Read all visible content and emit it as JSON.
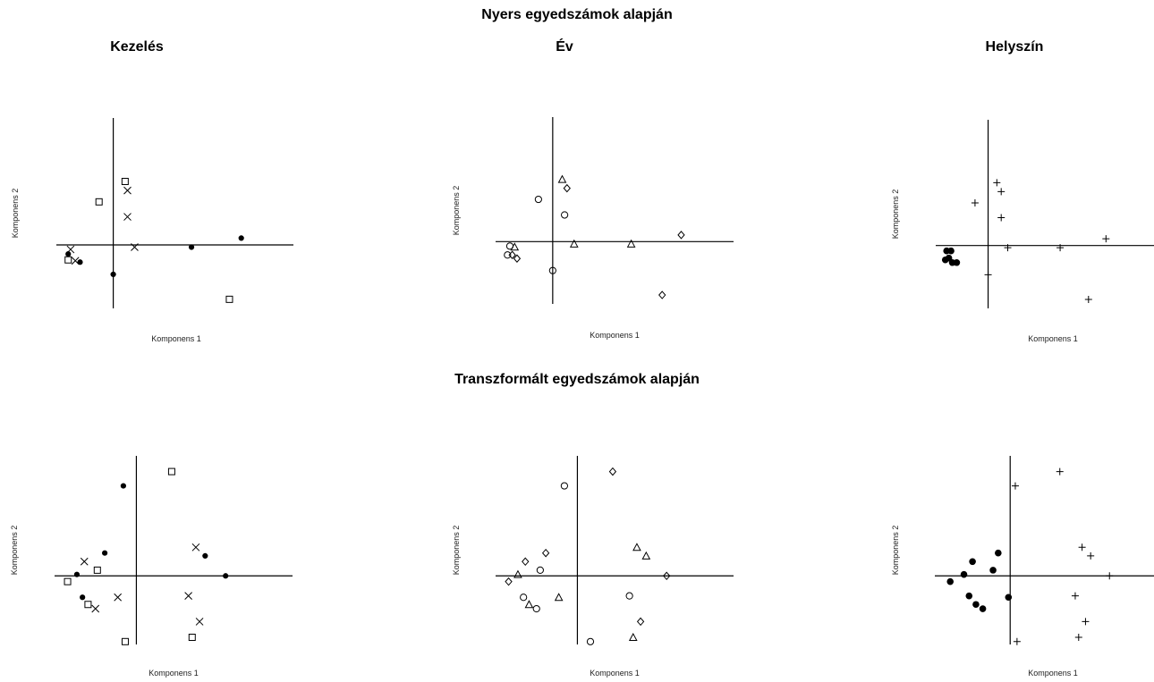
{
  "headings": {
    "raw": "Nyers egyedszámok alapján",
    "transformed": "Transzformált egyedszámok alapján",
    "col1": "Kezelés",
    "col2": "Év",
    "col3": "Helyszín"
  },
  "chart_data": [
    {
      "type": "scatter",
      "title": "Kezelés",
      "group": "Nyers egyedszámok alapján",
      "xlabel": "Komponens 1",
      "ylabel": "Komponens 2",
      "xlim": [
        -1.2,
        3.8
      ],
      "ylim": [
        -1.4,
        2.8
      ],
      "points": [
        {
          "x": 0.25,
          "y": 1.4,
          "m": "square"
        },
        {
          "x": -0.3,
          "y": 0.95,
          "m": "square"
        },
        {
          "x": 2.45,
          "y": -1.2,
          "m": "square"
        },
        {
          "x": -0.95,
          "y": -0.33,
          "m": "square"
        },
        {
          "x": 0.3,
          "y": 1.2,
          "m": "x"
        },
        {
          "x": 0.3,
          "y": 0.62,
          "m": "x"
        },
        {
          "x": 0.45,
          "y": -0.05,
          "m": "x"
        },
        {
          "x": -0.9,
          "y": -0.1,
          "m": "x"
        },
        {
          "x": -0.8,
          "y": -0.35,
          "m": "x"
        },
        {
          "x": 2.7,
          "y": 0.15,
          "m": "star"
        },
        {
          "x": 1.65,
          "y": -0.05,
          "m": "star"
        },
        {
          "x": 0.0,
          "y": -0.65,
          "m": "star"
        },
        {
          "x": -0.7,
          "y": -0.38,
          "m": "star"
        },
        {
          "x": -0.95,
          "y": -0.2,
          "m": "star"
        }
      ]
    },
    {
      "type": "scatter",
      "title": "Év",
      "group": "Nyers egyedszámok alapján",
      "xlabel": "Komponens 1",
      "ylabel": "Komponens 2",
      "xlim": [
        -1.2,
        3.8
      ],
      "ylim": [
        -1.4,
        2.8
      ],
      "points": [
        {
          "x": -0.3,
          "y": 0.95,
          "m": "circle"
        },
        {
          "x": 0.25,
          "y": 0.6,
          "m": "circle"
        },
        {
          "x": 0.0,
          "y": -0.65,
          "m": "circle"
        },
        {
          "x": -0.9,
          "y": -0.1,
          "m": "circle"
        },
        {
          "x": -0.95,
          "y": -0.3,
          "m": "circle"
        },
        {
          "x": 0.2,
          "y": 1.4,
          "m": "triangle"
        },
        {
          "x": 0.45,
          "y": -0.05,
          "m": "triangle"
        },
        {
          "x": 1.65,
          "y": -0.05,
          "m": "triangle"
        },
        {
          "x": -0.8,
          "y": -0.12,
          "m": "triangle"
        },
        {
          "x": 0.3,
          "y": 1.2,
          "m": "diamond"
        },
        {
          "x": 2.7,
          "y": 0.15,
          "m": "diamond"
        },
        {
          "x": 2.3,
          "y": -1.2,
          "m": "diamond"
        },
        {
          "x": -0.75,
          "y": -0.38,
          "m": "diamond"
        },
        {
          "x": -0.85,
          "y": -0.3,
          "m": "diamond"
        }
      ]
    },
    {
      "type": "scatter",
      "title": "Helyszín",
      "group": "Nyers egyedszámok alapján",
      "xlabel": "Komponens 1",
      "ylabel": "Komponens 2",
      "xlim": [
        -1.2,
        3.8
      ],
      "ylim": [
        -1.4,
        2.8
      ],
      "points": [
        {
          "x": 0.2,
          "y": 1.4,
          "m": "plus"
        },
        {
          "x": 0.3,
          "y": 1.2,
          "m": "plus"
        },
        {
          "x": -0.3,
          "y": 0.95,
          "m": "plus"
        },
        {
          "x": 0.3,
          "y": 0.62,
          "m": "plus"
        },
        {
          "x": 0.45,
          "y": -0.05,
          "m": "plus"
        },
        {
          "x": 1.65,
          "y": -0.05,
          "m": "plus"
        },
        {
          "x": 2.7,
          "y": 0.15,
          "m": "plus"
        },
        {
          "x": 0.0,
          "y": -0.65,
          "m": "plus"
        },
        {
          "x": 2.3,
          "y": -1.2,
          "m": "plus"
        },
        {
          "x": -0.95,
          "y": -0.12,
          "m": "dot"
        },
        {
          "x": -0.85,
          "y": -0.12,
          "m": "dot"
        },
        {
          "x": -0.98,
          "y": -0.32,
          "m": "dot"
        },
        {
          "x": -0.9,
          "y": -0.28,
          "m": "dot"
        },
        {
          "x": -0.82,
          "y": -0.38,
          "m": "dot"
        },
        {
          "x": -0.72,
          "y": -0.38,
          "m": "dot"
        }
      ]
    },
    {
      "type": "scatter",
      "title": "Kezelés",
      "group": "Transzformált egyedszámok alapján",
      "xlabel": "Komponens 1",
      "ylabel": "Komponens 2",
      "xlim": [
        -2.2,
        4.2
      ],
      "ylim": [
        -2.4,
        4.2
      ],
      "points": [
        {
          "x": 0.95,
          "y": 3.65,
          "m": "square"
        },
        {
          "x": -1.05,
          "y": 0.2,
          "m": "square"
        },
        {
          "x": -1.85,
          "y": -0.2,
          "m": "square"
        },
        {
          "x": -1.3,
          "y": -1.0,
          "m": "square"
        },
        {
          "x": -0.3,
          "y": -2.3,
          "m": "square"
        },
        {
          "x": 1.5,
          "y": -2.15,
          "m": "square"
        },
        {
          "x": -1.4,
          "y": 0.5,
          "m": "x"
        },
        {
          "x": 1.6,
          "y": 1.0,
          "m": "x"
        },
        {
          "x": 1.4,
          "y": -0.7,
          "m": "x"
        },
        {
          "x": -0.5,
          "y": -0.75,
          "m": "x"
        },
        {
          "x": -1.1,
          "y": -1.15,
          "m": "x"
        },
        {
          "x": 1.7,
          "y": -1.6,
          "m": "x"
        },
        {
          "x": -0.35,
          "y": 3.15,
          "m": "star"
        },
        {
          "x": -0.85,
          "y": 0.8,
          "m": "star"
        },
        {
          "x": 1.85,
          "y": 0.7,
          "m": "star"
        },
        {
          "x": -1.6,
          "y": 0.05,
          "m": "star"
        },
        {
          "x": 2.4,
          "y": 0.0,
          "m": "star"
        },
        {
          "x": -1.45,
          "y": -0.75,
          "m": "star"
        }
      ]
    },
    {
      "type": "scatter",
      "title": "Év",
      "group": "Transzformált egyedszámok alapján",
      "xlabel": "Komponens 1",
      "ylabel": "Komponens 2",
      "xlim": [
        -2.2,
        4.2
      ],
      "ylim": [
        -2.4,
        4.2
      ],
      "points": [
        {
          "x": -0.35,
          "y": 3.15,
          "m": "circle"
        },
        {
          "x": -1.0,
          "y": 0.2,
          "m": "circle"
        },
        {
          "x": -1.45,
          "y": -0.75,
          "m": "circle"
        },
        {
          "x": 1.4,
          "y": -0.7,
          "m": "circle"
        },
        {
          "x": -1.1,
          "y": -1.15,
          "m": "circle"
        },
        {
          "x": 0.35,
          "y": -2.3,
          "m": "circle"
        },
        {
          "x": -1.6,
          "y": 0.05,
          "m": "triangle"
        },
        {
          "x": 1.6,
          "y": 1.0,
          "m": "triangle"
        },
        {
          "x": 1.85,
          "y": 0.7,
          "m": "triangle"
        },
        {
          "x": -0.5,
          "y": -0.75,
          "m": "triangle"
        },
        {
          "x": -1.3,
          "y": -1.0,
          "m": "triangle"
        },
        {
          "x": 1.5,
          "y": -2.15,
          "m": "triangle"
        },
        {
          "x": 0.95,
          "y": 3.65,
          "m": "diamond"
        },
        {
          "x": -1.4,
          "y": 0.5,
          "m": "diamond"
        },
        {
          "x": -0.85,
          "y": 0.8,
          "m": "diamond"
        },
        {
          "x": 2.4,
          "y": 0.0,
          "m": "diamond"
        },
        {
          "x": -1.85,
          "y": -0.2,
          "m": "diamond"
        },
        {
          "x": 1.7,
          "y": -1.6,
          "m": "diamond"
        }
      ]
    },
    {
      "type": "scatter",
      "title": "Helyszín",
      "group": "Transzformált egyedszámok alapján",
      "xlabel": "Komponens 1",
      "ylabel": "Komponens 2",
      "xlim": [
        -2.2,
        4.2
      ],
      "ylim": [
        -2.4,
        4.2
      ],
      "points": [
        {
          "x": 1.45,
          "y": 3.65,
          "m": "plus"
        },
        {
          "x": 0.15,
          "y": 3.15,
          "m": "plus"
        },
        {
          "x": 2.1,
          "y": 1.0,
          "m": "plus"
        },
        {
          "x": 2.35,
          "y": 0.7,
          "m": "plus"
        },
        {
          "x": 2.9,
          "y": 0.0,
          "m": "plus"
        },
        {
          "x": 1.9,
          "y": -0.7,
          "m": "plus"
        },
        {
          "x": 2.2,
          "y": -1.6,
          "m": "plus"
        },
        {
          "x": 2.0,
          "y": -2.15,
          "m": "plus"
        },
        {
          "x": 0.2,
          "y": -2.3,
          "m": "plus"
        },
        {
          "x": -0.35,
          "y": 0.8,
          "m": "dot"
        },
        {
          "x": -1.1,
          "y": 0.5,
          "m": "dot"
        },
        {
          "x": -0.5,
          "y": 0.2,
          "m": "dot"
        },
        {
          "x": -1.35,
          "y": 0.05,
          "m": "dot"
        },
        {
          "x": -1.75,
          "y": -0.2,
          "m": "dot"
        },
        {
          "x": -1.2,
          "y": -0.7,
          "m": "dot"
        },
        {
          "x": -0.05,
          "y": -0.75,
          "m": "dot"
        },
        {
          "x": -1.0,
          "y": -1.0,
          "m": "dot"
        },
        {
          "x": -0.8,
          "y": -1.15,
          "m": "dot"
        }
      ]
    }
  ]
}
